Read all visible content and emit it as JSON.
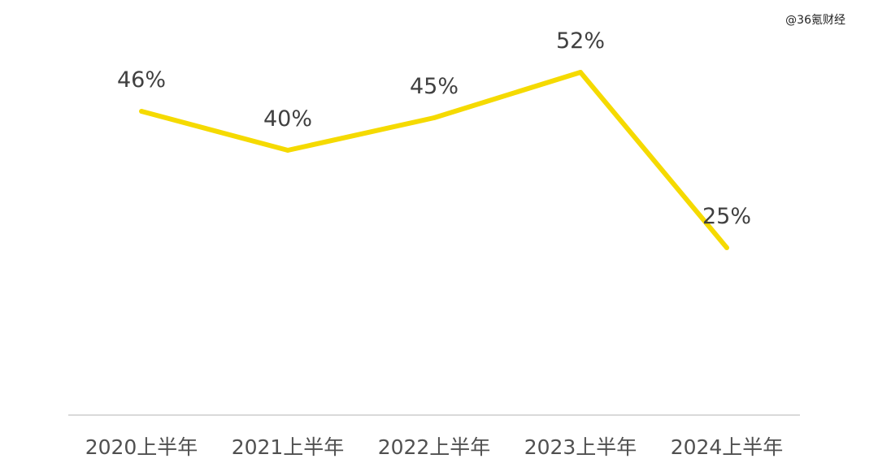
{
  "watermark": "@36氪财经",
  "chart_data": {
    "type": "line",
    "categories": [
      "2020上半年",
      "2021上半年",
      "2022上半年",
      "2023上半年",
      "2024上半年"
    ],
    "series": [
      {
        "values": [
          46,
          40,
          45,
          52,
          25
        ],
        "labels": [
          "46%",
          "40%",
          "45%",
          "52%",
          "25%"
        ],
        "color": "#F5DA00"
      }
    ],
    "ylim": [
      0,
      100
    ],
    "grid": false,
    "legend": "none",
    "axis_color": "#D9D9D9"
  }
}
